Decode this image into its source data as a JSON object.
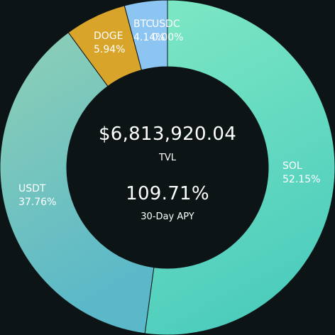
{
  "center": {
    "tvl_value": "$6,813,920.04",
    "tvl_label": "TVL",
    "apy_value": "109.71%",
    "apy_label": "30-Day APY"
  },
  "chart_data": {
    "type": "pie",
    "donut": true,
    "start_angle_deg": 0,
    "direction": "clockwise",
    "slices": [
      {
        "label": "SOL",
        "value": 52.15,
        "percent_label": "52.15%",
        "color_start": "#7ee8c4",
        "color_end": "#4ecdbd",
        "text_color": "#ffffff"
      },
      {
        "label": "USDT",
        "value": 37.76,
        "percent_label": "37.76%",
        "color_start": "#8fd0b5",
        "color_end": "#5ab8c8",
        "text_color": "#ffffff"
      },
      {
        "label": "DOGE",
        "value": 5.94,
        "percent_label": "5.94%",
        "color_start": "#d8a42a",
        "color_end": "#d8a42a",
        "text_color": "#ffffff"
      },
      {
        "label": "BTC",
        "value": 4.14,
        "percent_label": "4.14%",
        "color_start": "#8cc4f2",
        "color_end": "#8cc4f2",
        "text_color": "#ffffff"
      },
      {
        "label": "USDC",
        "value": 0.0,
        "percent_label": "0.00%",
        "color_start": "#2a6fc9",
        "color_end": "#2a6fc9",
        "text_color": "#ffffff"
      }
    ]
  }
}
